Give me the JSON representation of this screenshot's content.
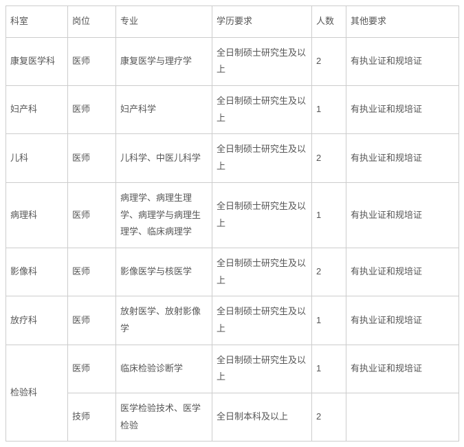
{
  "table": {
    "headers": {
      "department": "科室",
      "position": "岗位",
      "major": "专业",
      "education": "学历要求",
      "count": "人数",
      "other": "其他要求"
    },
    "rows": [
      {
        "department": "康复医学科",
        "position": "医师",
        "major": "康复医学与理疗学",
        "education": "全日制硕士研究生及以上",
        "count": "2",
        "other": "有执业证和规培证",
        "rowspan": 1
      },
      {
        "department": "妇产科",
        "position": "医师",
        "major": "妇产科学",
        "education": "全日制硕士研究生及以上",
        "count": "1",
        "other": "有执业证和规培证",
        "rowspan": 1
      },
      {
        "department": "儿科",
        "position": "医师",
        "major": "儿科学、中医儿科学",
        "education": "全日制硕士研究生及以上",
        "count": "2",
        "other": "有执业证和规培证",
        "rowspan": 1
      },
      {
        "department": "病理科",
        "position": "医师",
        "major": "病理学、病理生理学、病理学与病理生理学、临床病理学",
        "education": "全日制硕士研究生及以上",
        "count": "1",
        "other": "有执业证和规培证",
        "rowspan": 1
      },
      {
        "department": "影像科",
        "position": "医师",
        "major": "影像医学与核医学",
        "education": "全日制硕士研究生及以上",
        "count": "2",
        "other": "有执业证和规培证",
        "rowspan": 1
      },
      {
        "department": "放疗科",
        "position": "医师",
        "major": "放射医学、放射影像学",
        "education": "全日制硕士研究生及以上",
        "count": "1",
        "other": "有执业证和规培证",
        "rowspan": 1
      },
      {
        "department": "检验科",
        "position": "医师",
        "major": "临床检验诊断学",
        "education": "全日制硕士研究生及以上",
        "count": "1",
        "other": "有执业证和规培证",
        "rowspan": 2
      },
      {
        "department": "",
        "position": "技师",
        "major": "医学检验技术、医学检验",
        "education": "全日制本科及以上",
        "count": "2",
        "other": "",
        "rowspan": 0
      }
    ]
  }
}
